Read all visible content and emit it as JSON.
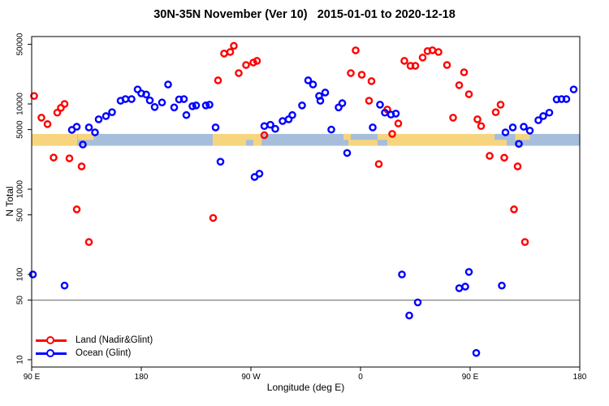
{
  "title": "30N-35N November (Ver 10)   2015-01-01 to 2020-12-18",
  "x_axis": {
    "label": "Longitude (deg E)",
    "note": "axis wraps: 90E to 180 to 90W to 0 to 90E to 180 (540 deg span, stored as display degrees 90-630)",
    "ticks": [
      {
        "value": 90,
        "label": "90 E"
      },
      {
        "value": 180,
        "label": "180"
      },
      {
        "value": 270,
        "label": "90 W"
      },
      {
        "value": 360,
        "label": "0"
      },
      {
        "value": 450,
        "label": "90 E"
      },
      {
        "value": 540,
        "label": "180"
      }
    ]
  },
  "y_axis": {
    "label": "N Total",
    "scale": "log",
    "ticks": [
      {
        "value": 50000,
        "label": "50000"
      },
      {
        "value": 10000,
        "label": "10000"
      },
      {
        "value": 5000,
        "label": "5000"
      },
      {
        "value": 1000,
        "label": "1000"
      },
      {
        "value": 500,
        "label": "500"
      },
      {
        "value": 100,
        "label": "100"
      },
      {
        "value": 50,
        "label": "50"
      },
      {
        "value": 10,
        "label": "10"
      }
    ]
  },
  "legend": [
    {
      "name": "Land (Nadir&Glint)",
      "color": "#ff0000"
    },
    {
      "name": "Ocean (Glint)",
      "color": "#0000ff"
    }
  ],
  "colors": {
    "land_points": "#ff0000",
    "ocean_points": "#0000ff",
    "band_land": "#f6d57e",
    "band_ocean": "#a6bedb",
    "threshold_line": "#808080",
    "frame": "#000000"
  },
  "chart_data": {
    "type": "scatter",
    "title": "30N-35N November (Ver 10)   2015-01-01 to 2020-12-18",
    "xlabel": "Longitude (deg E)",
    "ylabel": "N Total",
    "x_display_range": [
      90,
      630
    ],
    "y_range": [
      8,
      62000
    ],
    "threshold_line_n": 50,
    "land_ocean_band": {
      "n_top": 4450,
      "n_bottom": 3230,
      "land_segments_deg": [
        [
          90,
          127.3
        ],
        [
          238.7,
          278.7
        ],
        [
          350,
          480
        ]
      ],
      "ocean_segments_deg": [
        [
          127.3,
          238.7
        ],
        [
          278.7,
          350
        ],
        [
          480,
          540
        ]
      ],
      "detail_patches": [
        {
          "kind": "land",
          "part": "top",
          "deg": [
            128,
            141
          ]
        },
        {
          "kind": "land",
          "part": "top",
          "deg": [
            346,
            350
          ]
        },
        {
          "kind": "ocean",
          "part": "top",
          "deg": [
            352,
            374
          ]
        },
        {
          "kind": "ocean",
          "part": "bottom",
          "deg": [
            374,
            382
          ]
        },
        {
          "kind": "ocean",
          "part": "bottom",
          "deg": [
            266,
            272
          ]
        },
        {
          "kind": "ocean",
          "part": "top",
          "deg": [
            470,
            480
          ]
        },
        {
          "kind": "land",
          "part": "top",
          "deg": [
            487,
            499
          ]
        }
      ]
    },
    "series": [
      {
        "name": "Land (Nadir&Glint)",
        "color": "#ff0000",
        "points": [
          [
            92,
            12400
          ],
          [
            98,
            6900
          ],
          [
            103,
            5800
          ],
          [
            108,
            2350
          ],
          [
            111,
            7900
          ],
          [
            114,
            9000
          ],
          [
            117,
            10000
          ],
          [
            121,
            2300
          ],
          [
            127,
            580
          ],
          [
            131,
            1850
          ],
          [
            137,
            240
          ],
          [
            239,
            460
          ],
          [
            243,
            18900
          ],
          [
            248,
            39000
          ],
          [
            253,
            40700
          ],
          [
            256,
            48000
          ],
          [
            260,
            23000
          ],
          [
            266,
            28600
          ],
          [
            272,
            30600
          ],
          [
            275,
            32000
          ],
          [
            281,
            4300
          ],
          [
            352,
            23000
          ],
          [
            356,
            42500
          ],
          [
            361,
            22000
          ],
          [
            367,
            10900
          ],
          [
            369,
            18500
          ],
          [
            375,
            1970
          ],
          [
            382,
            8600
          ],
          [
            386,
            4450
          ],
          [
            391,
            5900
          ],
          [
            396,
            32000
          ],
          [
            401,
            28000
          ],
          [
            405,
            28000
          ],
          [
            411,
            35000
          ],
          [
            415,
            41700
          ],
          [
            419,
            42600
          ],
          [
            424,
            40700
          ],
          [
            431,
            28600
          ],
          [
            436,
            6900
          ],
          [
            441,
            16600
          ],
          [
            445,
            23500
          ],
          [
            449,
            13000
          ],
          [
            456,
            6600
          ],
          [
            459,
            5500
          ],
          [
            466,
            2460
          ],
          [
            471,
            8000
          ],
          [
            475,
            9800
          ],
          [
            478,
            2340
          ],
          [
            486,
            580
          ],
          [
            489,
            1850
          ],
          [
            495,
            240
          ]
        ]
      },
      {
        "name": "Ocean (Glint)",
        "color": "#0000ff",
        "points": [
          [
            91,
            100
          ],
          [
            117,
            74
          ],
          [
            123,
            4960
          ],
          [
            127,
            5400
          ],
          [
            132,
            3340
          ],
          [
            137,
            5300
          ],
          [
            142,
            4640
          ],
          [
            145,
            6600
          ],
          [
            151,
            7200
          ],
          [
            156,
            8000
          ],
          [
            163,
            10900
          ],
          [
            167,
            11400
          ],
          [
            172,
            11400
          ],
          [
            177,
            14800
          ],
          [
            180,
            13300
          ],
          [
            184,
            12900
          ],
          [
            187,
            11000
          ],
          [
            191,
            9200
          ],
          [
            197,
            10400
          ],
          [
            202,
            16900
          ],
          [
            207,
            9100
          ],
          [
            211,
            11300
          ],
          [
            215,
            11400
          ],
          [
            217,
            7400
          ],
          [
            222,
            9400
          ],
          [
            225,
            9600
          ],
          [
            233,
            9600
          ],
          [
            236,
            9800
          ],
          [
            241,
            5300
          ],
          [
            245,
            2100
          ],
          [
            273,
            1390
          ],
          [
            277,
            1520
          ],
          [
            281,
            5500
          ],
          [
            286,
            5700
          ],
          [
            290,
            5100
          ],
          [
            296,
            6300
          ],
          [
            301,
            6600
          ],
          [
            304,
            7400
          ],
          [
            312,
            9600
          ],
          [
            317,
            18900
          ],
          [
            321,
            16900
          ],
          [
            326,
            12400
          ],
          [
            327,
            10900
          ],
          [
            331,
            13600
          ],
          [
            336,
            5000
          ],
          [
            342,
            9100
          ],
          [
            345,
            10200
          ],
          [
            349,
            2660
          ],
          [
            370,
            5300
          ],
          [
            376,
            9800
          ],
          [
            380,
            7900
          ],
          [
            385,
            7500
          ],
          [
            389,
            7700
          ],
          [
            394,
            100
          ],
          [
            400,
            33
          ],
          [
            407,
            47
          ],
          [
            441,
            69
          ],
          [
            446,
            72
          ],
          [
            449,
            107
          ],
          [
            455,
            12
          ],
          [
            476,
            74
          ],
          [
            479,
            4640
          ],
          [
            485,
            5300
          ],
          [
            490,
            3400
          ],
          [
            494,
            5400
          ],
          [
            499,
            4860
          ],
          [
            506,
            6440
          ],
          [
            510,
            7200
          ],
          [
            515,
            7900
          ],
          [
            521,
            11300
          ],
          [
            525,
            11400
          ],
          [
            529,
            11400
          ],
          [
            535,
            14800
          ]
        ]
      }
    ]
  }
}
